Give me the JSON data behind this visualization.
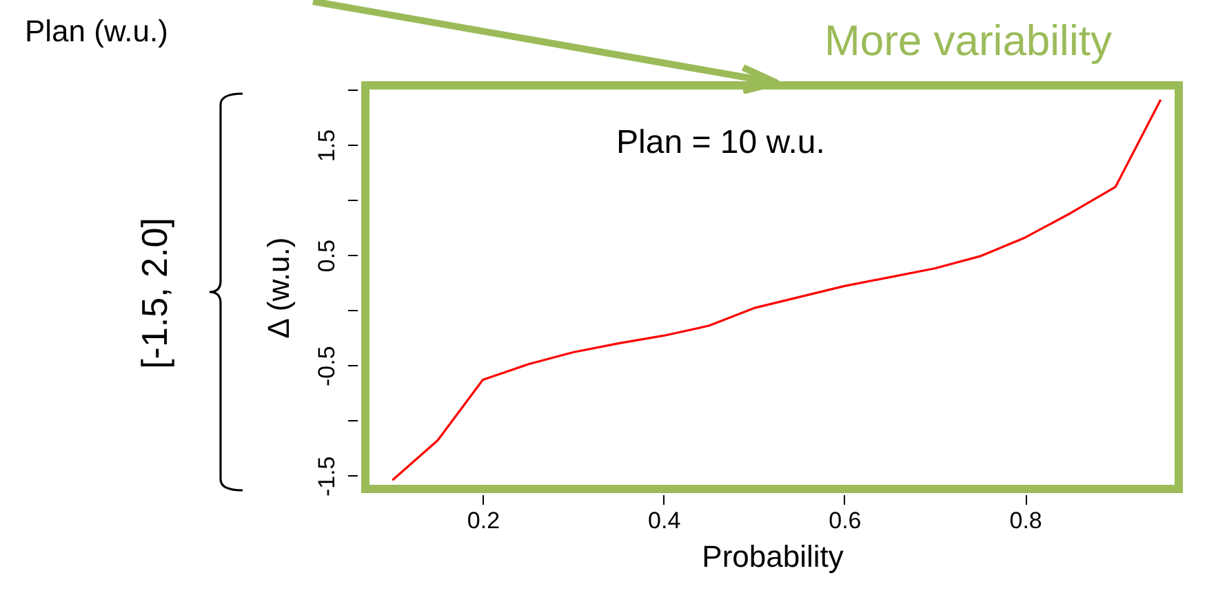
{
  "chart_data": {
    "type": "line",
    "xlabel": "Probability",
    "ylabel": "Δ (w.u.)",
    "x": [
      0.1,
      0.15,
      0.2,
      0.25,
      0.3,
      0.35,
      0.4,
      0.45,
      0.5,
      0.55,
      0.6,
      0.65,
      0.7,
      0.75,
      0.8,
      0.85,
      0.9,
      0.95
    ],
    "series": [
      {
        "color": "#ff0000",
        "values": [
          -1.54,
          -1.18,
          -0.63,
          -0.49,
          -0.38,
          -0.3,
          -0.23,
          -0.14,
          0.02,
          0.12,
          0.22,
          0.3,
          0.38,
          0.49,
          0.66,
          0.88,
          1.12,
          1.91
        ]
      }
    ],
    "xlim": [
      0.07,
      0.97
    ],
    "xticks": [
      0.2,
      0.4,
      0.6,
      0.8
    ],
    "ylim": [
      -1.62,
      2.04
    ],
    "yticks": [
      {
        "value": -1.5,
        "label": "-1.5"
      },
      {
        "value": -1,
        "label": null
      },
      {
        "value": -0.5,
        "label": "-0.5"
      },
      {
        "value": 0,
        "label": null
      },
      {
        "value": 0.5,
        "label": "0.5"
      },
      {
        "value": 1,
        "label": null
      },
      {
        "value": 1.5,
        "label": "1.5"
      },
      {
        "value": 2,
        "label": null
      }
    ],
    "grid": false,
    "marker": "none",
    "line_style": "solid",
    "annotations": [
      "Plan = 10 w.u.",
      "More variability",
      "Plan (w.u.)",
      "[-1.5, 2.0]"
    ]
  }
}
